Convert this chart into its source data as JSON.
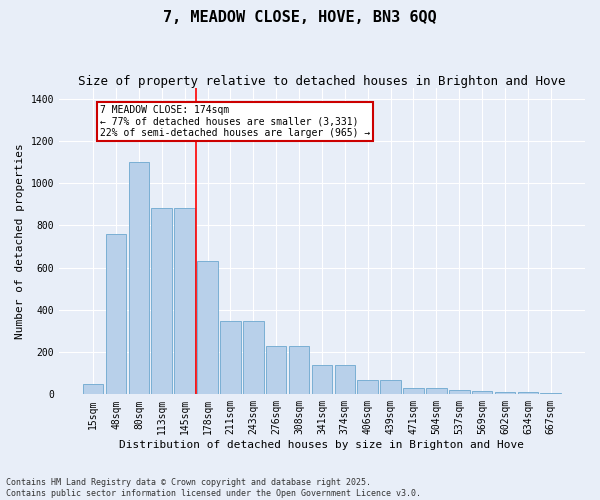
{
  "title": "7, MEADOW CLOSE, HOVE, BN3 6QQ",
  "subtitle": "Size of property relative to detached houses in Brighton and Hove",
  "xlabel": "Distribution of detached houses by size in Brighton and Hove",
  "ylabel": "Number of detached properties",
  "categories": [
    "15sqm",
    "48sqm",
    "80sqm",
    "113sqm",
    "145sqm",
    "178sqm",
    "211sqm",
    "243sqm",
    "276sqm",
    "308sqm",
    "341sqm",
    "374sqm",
    "406sqm",
    "439sqm",
    "471sqm",
    "504sqm",
    "537sqm",
    "569sqm",
    "602sqm",
    "634sqm",
    "667sqm"
  ],
  "values": [
    50,
    760,
    1100,
    880,
    880,
    630,
    345,
    345,
    230,
    230,
    140,
    140,
    70,
    70,
    32,
    32,
    22,
    15,
    10,
    10,
    5
  ],
  "bar_color": "#b8d0ea",
  "bar_edgecolor": "#7aafd4",
  "background_color": "#e8eef8",
  "grid_color": "#ffffff",
  "ref_line_label": "7 MEADOW CLOSE: 174sqm",
  "annotation_line1": "← 77% of detached houses are smaller (3,331)",
  "annotation_line2": "22% of semi-detached houses are larger (965) →",
  "annotation_box_color": "#cc0000",
  "footer_line1": "Contains HM Land Registry data © Crown copyright and database right 2025.",
  "footer_line2": "Contains public sector information licensed under the Open Government Licence v3.0.",
  "ylim": [
    0,
    1450
  ],
  "yticks": [
    0,
    200,
    400,
    600,
    800,
    1000,
    1200,
    1400
  ],
  "title_fontsize": 11,
  "subtitle_fontsize": 9,
  "axis_label_fontsize": 8,
  "tick_fontsize": 7,
  "annotation_fontsize": 7,
  "footer_fontsize": 6
}
